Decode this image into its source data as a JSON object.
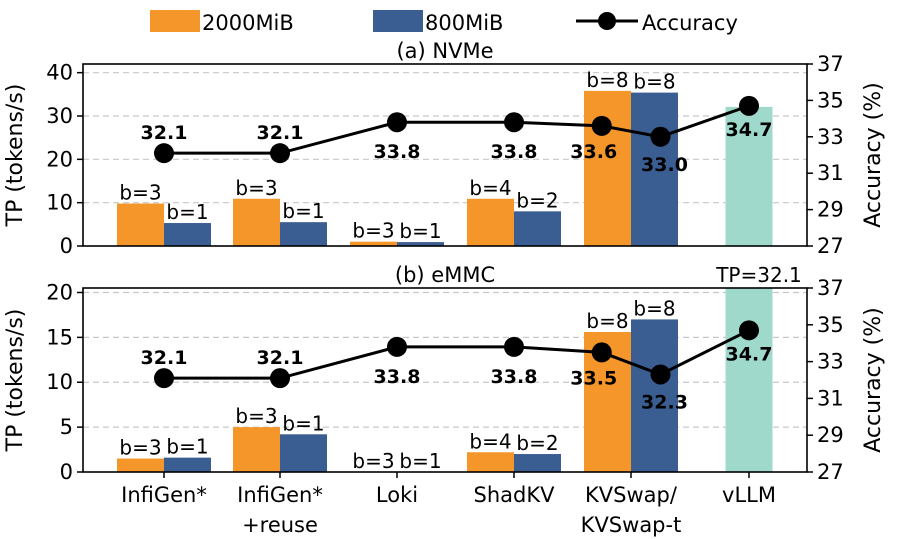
{
  "chart_data": {
    "type": "bar",
    "legend": [
      {
        "name": "2000MiB",
        "kind": "bar",
        "color": "#f5962a"
      },
      {
        "name": "800MiB",
        "kind": "bar",
        "color": "#3a5d92"
      },
      {
        "name": "Accuracy",
        "kind": "line",
        "color": "#000000"
      }
    ],
    "legend_placement": "top",
    "categories": [
      "InfiGen*",
      "InfiGen*\n+reuse",
      "Loki",
      "ShadKV",
      "KVSwap/\nKVSwap-t",
      "vLLM"
    ],
    "vllm_color": "#9fd9cc",
    "panels": [
      {
        "title": "(a) NVMe",
        "ylabel": "TP (tokens/s)",
        "ylim": [
          0,
          42
        ],
        "yticks": [
          0,
          10,
          20,
          30,
          40
        ],
        "y2label": "Accuracy (%)",
        "y2lim": [
          27,
          37
        ],
        "y2ticks": [
          27,
          29,
          31,
          33,
          35,
          37
        ],
        "series": [
          {
            "name": "2000MiB",
            "values": [
              9.8,
              10.9,
              1.0,
              10.9,
              35.8,
              null
            ],
            "labels": [
              "b=3",
              "b=3",
              "b=3",
              "b=4",
              "b=8",
              null
            ]
          },
          {
            "name": "800MiB",
            "values": [
              5.3,
              5.5,
              0.9,
              8.0,
              35.4,
              null
            ],
            "labels": [
              "b=1",
              "b=1",
              "b=1",
              "b=2",
              "b=8",
              null
            ]
          },
          {
            "name": "vLLM",
            "values": [
              null,
              null,
              null,
              null,
              null,
              32.1
            ],
            "labels": [
              null,
              null,
              null,
              null,
              null,
              null
            ]
          }
        ],
        "accuracy": [
          {
            "pos": 0,
            "value": 32.1,
            "label": "32.1"
          },
          {
            "pos": 1,
            "value": 32.1,
            "label": "32.1"
          },
          {
            "pos": 2,
            "value": 33.8,
            "label": "33.8"
          },
          {
            "pos": 3,
            "value": 33.8,
            "label": "33.8"
          },
          {
            "pos": 3.75,
            "value": 33.6,
            "label": "33.6"
          },
          {
            "pos": 4.25,
            "value": 33.0,
            "label": "33.0"
          },
          {
            "pos": 5,
            "value": 34.7,
            "label": "34.7"
          }
        ]
      },
      {
        "title": "(b) eMMC",
        "ylabel": "TP (tokens/s)",
        "ylim": [
          0,
          20.5
        ],
        "yticks": [
          0,
          5,
          10,
          15,
          20
        ],
        "y2label": "Accuracy (%)",
        "y2lim": [
          27,
          37
        ],
        "y2ticks": [
          27,
          29,
          31,
          33,
          35,
          37
        ],
        "series": [
          {
            "name": "2000MiB",
            "values": [
              1.5,
              5.0,
              0.0,
              2.2,
              15.6,
              null
            ],
            "labels": [
              "b=3",
              "b=3",
              "b=3",
              "b=4",
              "b=8",
              null
            ]
          },
          {
            "name": "800MiB",
            "values": [
              1.6,
              4.2,
              0.0,
              2.0,
              17.0,
              null
            ],
            "labels": [
              "b=1",
              "b=1",
              "b=1",
              "b=2",
              "b=8",
              null
            ]
          },
          {
            "name": "vLLM",
            "values": [
              null,
              null,
              null,
              null,
              null,
              32.1
            ],
            "labels": [
              null,
              null,
              null,
              null,
              null,
              "TP=32.1"
            ]
          }
        ],
        "accuracy": [
          {
            "pos": 0,
            "value": 32.1,
            "label": "32.1"
          },
          {
            "pos": 1,
            "value": 32.1,
            "label": "32.1"
          },
          {
            "pos": 2,
            "value": 33.8,
            "label": "33.8"
          },
          {
            "pos": 3,
            "value": 33.8,
            "label": "33.8"
          },
          {
            "pos": 3.75,
            "value": 33.5,
            "label": "33.5"
          },
          {
            "pos": 4.25,
            "value": 32.3,
            "label": "32.3"
          },
          {
            "pos": 5,
            "value": 34.7,
            "label": "34.7"
          }
        ]
      }
    ]
  }
}
